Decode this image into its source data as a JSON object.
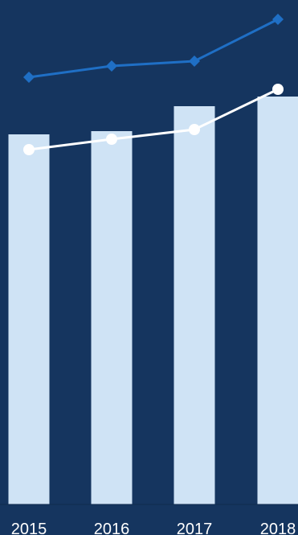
{
  "chart_data": {
    "type": "bar",
    "categories": [
      "2015",
      "2016",
      "2017",
      "2018"
    ],
    "series": [
      {
        "kind": "bar",
        "values": [
          460,
          464,
          495,
          507
        ],
        "color": "#cfe3f5"
      },
      {
        "kind": "line",
        "marker": "circle",
        "values": [
          441,
          454,
          466,
          516
        ],
        "color": "#ffffff"
      },
      {
        "kind": "line",
        "marker": "diamond",
        "values": [
          531,
          545,
          551,
          603
        ],
        "color": "#1f6fc5"
      }
    ],
    "ylim": [
      0,
      627
    ],
    "background": "#15355f",
    "grid": false,
    "legend": "none"
  }
}
